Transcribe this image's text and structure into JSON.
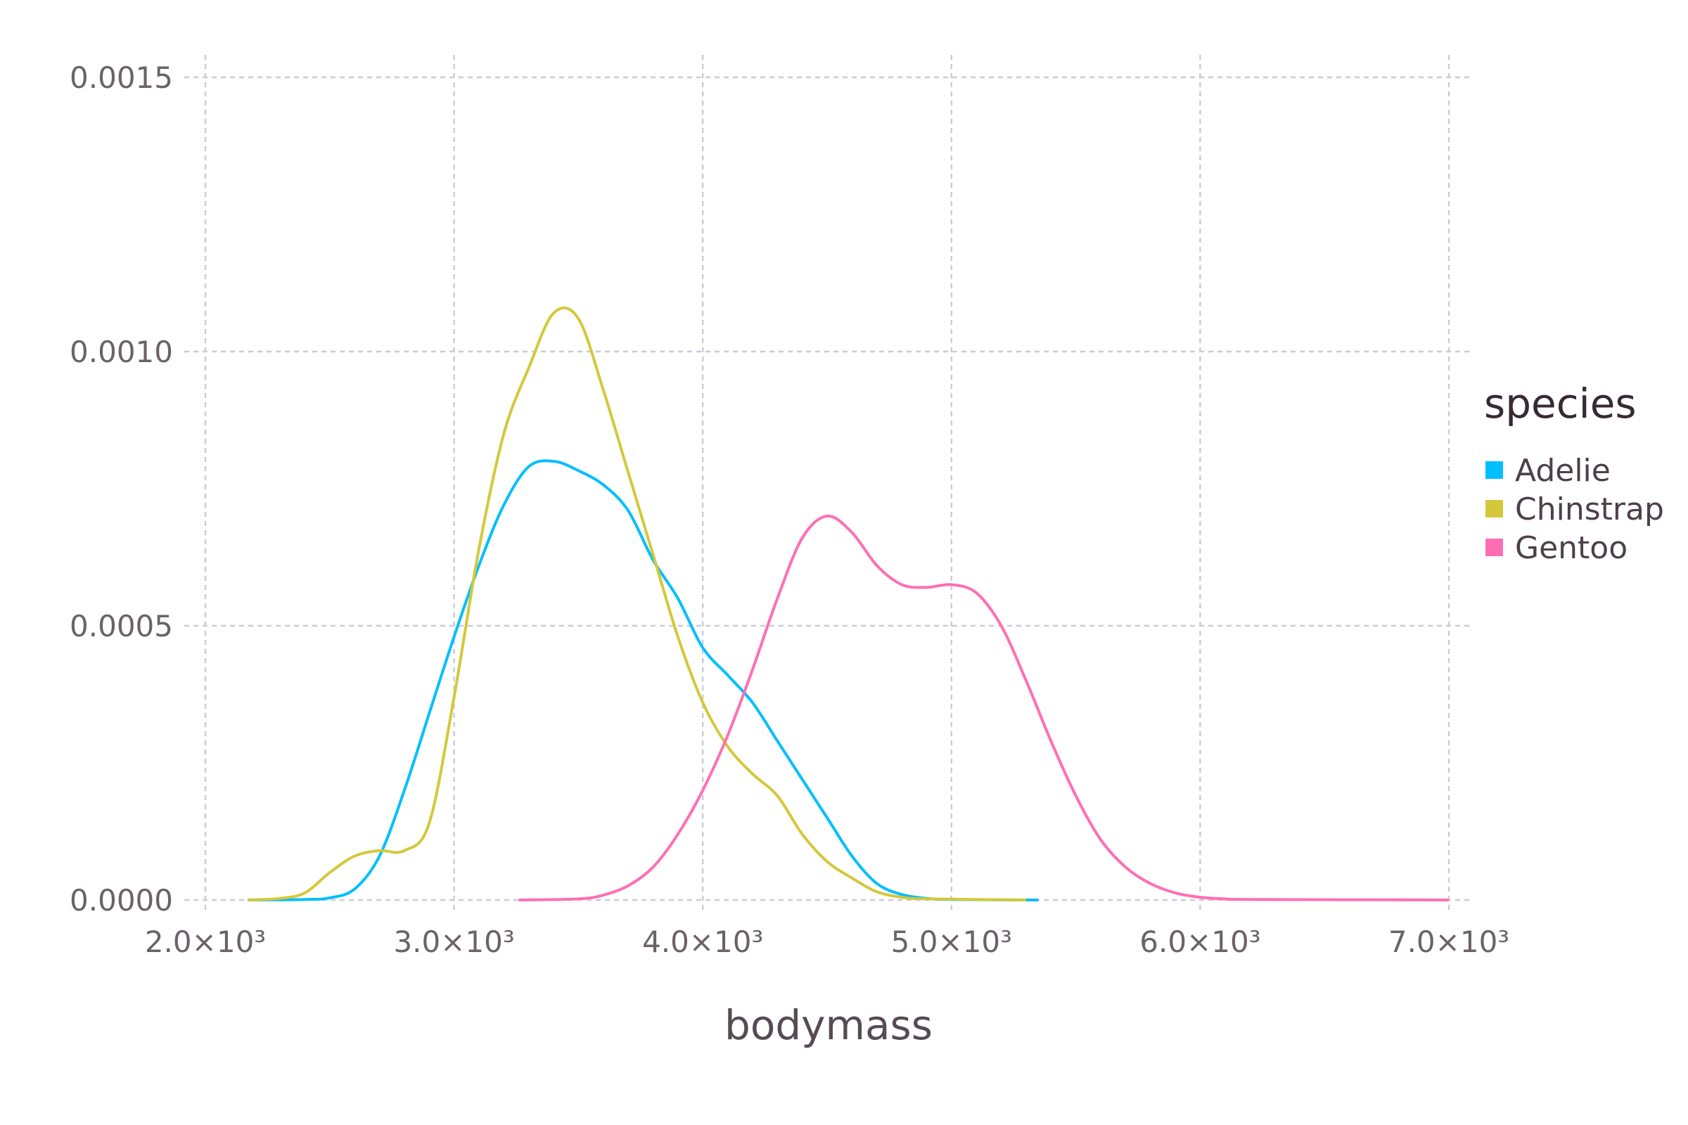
{
  "chart_data": {
    "type": "line",
    "xlabel": "bodymass",
    "ylabel": "",
    "xlim": [
      2000,
      7000
    ],
    "ylim": [
      0,
      0.0015
    ],
    "x_ticks": [
      {
        "value": 2000,
        "label": "2.0×10³"
      },
      {
        "value": 3000,
        "label": "3.0×10³"
      },
      {
        "value": 4000,
        "label": "4.0×10³"
      },
      {
        "value": 5000,
        "label": "5.0×10³"
      },
      {
        "value": 6000,
        "label": "6.0×10³"
      },
      {
        "value": 7000,
        "label": "7.0×10³"
      }
    ],
    "y_ticks": [
      {
        "value": 0.0,
        "label": "0.0000"
      },
      {
        "value": 0.0005,
        "label": "0.0005"
      },
      {
        "value": 0.001,
        "label": "0.0010"
      },
      {
        "value": 0.0015,
        "label": "0.0015"
      }
    ],
    "grid": true,
    "legend": {
      "title": "species",
      "placement": "right"
    },
    "series": [
      {
        "name": "Adelie",
        "color": "#00bfff",
        "points": [
          [
            2170,
            0.0
          ],
          [
            2400,
            1e-06
          ],
          [
            2500,
            4e-06
          ],
          [
            2600,
            2e-05
          ],
          [
            2700,
            8e-05
          ],
          [
            2800,
            0.0002
          ],
          [
            2900,
            0.00034
          ],
          [
            3000,
            0.00048
          ],
          [
            3100,
            0.00061
          ],
          [
            3200,
            0.00072
          ],
          [
            3300,
            0.00079
          ],
          [
            3400,
            0.0008
          ],
          [
            3500,
            0.000783
          ],
          [
            3600,
            0.000757
          ],
          [
            3700,
            0.00071
          ],
          [
            3800,
            0.00062
          ],
          [
            3900,
            0.00055
          ],
          [
            4000,
            0.00046
          ],
          [
            4100,
            0.00041
          ],
          [
            4200,
            0.00036
          ],
          [
            4300,
            0.00029
          ],
          [
            4400,
            0.00022
          ],
          [
            4500,
            0.00015
          ],
          [
            4600,
            8e-05
          ],
          [
            4700,
            3e-05
          ],
          [
            4800,
            1e-05
          ],
          [
            4900,
            3e-06
          ],
          [
            5000,
            1e-06
          ],
          [
            5350,
            0.0
          ]
        ]
      },
      {
        "name": "Chinstrap",
        "color": "#d4c83a",
        "points": [
          [
            2170,
            0.0
          ],
          [
            2300,
            3e-06
          ],
          [
            2400,
            1.3e-05
          ],
          [
            2500,
            5e-05
          ],
          [
            2600,
            8e-05
          ],
          [
            2700,
            9e-05
          ],
          [
            2800,
            9e-05
          ],
          [
            2900,
            0.00014
          ],
          [
            3000,
            0.00037
          ],
          [
            3100,
            0.00064
          ],
          [
            3200,
            0.00085
          ],
          [
            3300,
            0.00097
          ],
          [
            3400,
            0.00107
          ],
          [
            3500,
            0.00106
          ],
          [
            3600,
            0.00093
          ],
          [
            3700,
            0.00078
          ],
          [
            3800,
            0.00063
          ],
          [
            3900,
            0.00048
          ],
          [
            4000,
            0.00036
          ],
          [
            4100,
            0.00028
          ],
          [
            4200,
            0.00023
          ],
          [
            4300,
            0.00019
          ],
          [
            4400,
            0.00012
          ],
          [
            4500,
            7e-05
          ],
          [
            4600,
            4e-05
          ],
          [
            4700,
            1.5e-05
          ],
          [
            4800,
            5e-06
          ],
          [
            4900,
            2e-06
          ],
          [
            5300,
            0.0
          ]
        ]
      },
      {
        "name": "Gentoo",
        "color": "#ff6eb4",
        "points": [
          [
            3260,
            0.0
          ],
          [
            3500,
            2e-06
          ],
          [
            3600,
            9e-06
          ],
          [
            3700,
            2.6e-05
          ],
          [
            3800,
            6e-05
          ],
          [
            3900,
            0.00012
          ],
          [
            4000,
            0.0002
          ],
          [
            4100,
            0.0003
          ],
          [
            4200,
            0.00042
          ],
          [
            4300,
            0.00055
          ],
          [
            4400,
            0.00066
          ],
          [
            4500,
            0.0007
          ],
          [
            4600,
            0.00067
          ],
          [
            4700,
            0.00061
          ],
          [
            4800,
            0.000575
          ],
          [
            4900,
            0.00057
          ],
          [
            5000,
            0.000575
          ],
          [
            5100,
            0.00056
          ],
          [
            5200,
            0.0005
          ],
          [
            5300,
            0.0004
          ],
          [
            5400,
            0.00029
          ],
          [
            5500,
            0.00019
          ],
          [
            5600,
            0.00011
          ],
          [
            5700,
            6e-05
          ],
          [
            5800,
            3e-05
          ],
          [
            5900,
            1.3e-05
          ],
          [
            6000,
            5e-06
          ],
          [
            6100,
            2e-06
          ],
          [
            6200,
            1e-06
          ],
          [
            7000,
            0.0
          ]
        ]
      }
    ]
  }
}
